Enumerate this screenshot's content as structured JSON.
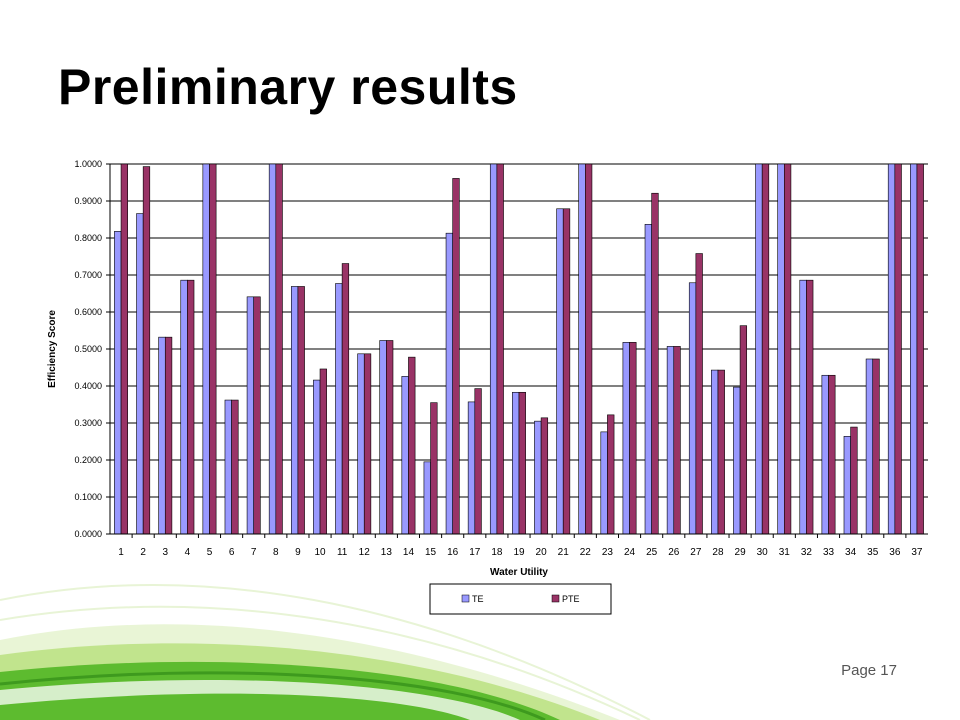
{
  "slide": {
    "title": "Preliminary results",
    "page_label": "Page 17"
  },
  "colors": {
    "te_fill": "#9999FF",
    "pte_fill": "#993366",
    "gridline": "#000000",
    "swoosh_green": "#5DBB2F",
    "swoosh_light": "#B7E07A"
  },
  "chart_data": {
    "type": "bar",
    "title": "",
    "xlabel": "Water Utility",
    "ylabel": "Efficiency Score",
    "ylim": [
      0,
      1
    ],
    "yticks": [
      "0.0000",
      "0.1000",
      "0.2000",
      "0.3000",
      "0.4000",
      "0.5000",
      "0.6000",
      "0.7000",
      "0.8000",
      "0.9000",
      "1.0000"
    ],
    "grid": true,
    "legend_position": "bottom-center",
    "categories": [
      "1",
      "2",
      "3",
      "4",
      "5",
      "6",
      "7",
      "8",
      "9",
      "10",
      "11",
      "12",
      "13",
      "14",
      "15",
      "16",
      "17",
      "18",
      "19",
      "20",
      "21",
      "22",
      "23",
      "24",
      "25",
      "26",
      "27",
      "28",
      "29",
      "30",
      "31",
      "32",
      "33",
      "34",
      "35",
      "36",
      "37"
    ],
    "series": [
      {
        "name": "TE",
        "color": "#9999FF",
        "values": [
          0.818,
          0.866,
          0.532,
          0.686,
          1.0,
          0.362,
          0.641,
          1.0,
          0.669,
          0.416,
          0.677,
          0.487,
          0.523,
          0.426,
          0.195,
          0.813,
          0.357,
          1.0,
          0.383,
          0.305,
          0.879,
          1.0,
          0.276,
          0.518,
          0.837,
          0.507,
          0.679,
          0.443,
          0.397,
          1.0,
          1.0,
          0.686,
          0.429,
          0.264,
          0.473,
          1.0,
          1.0
        ]
      },
      {
        "name": "PTE",
        "color": "#993366",
        "values": [
          1.0,
          0.993,
          0.532,
          0.686,
          1.0,
          0.362,
          0.641,
          1.0,
          0.669,
          0.446,
          0.731,
          0.487,
          0.523,
          0.478,
          0.355,
          0.961,
          0.393,
          1.0,
          0.383,
          0.314,
          0.879,
          1.0,
          0.322,
          0.518,
          0.921,
          0.507,
          0.758,
          0.443,
          0.563,
          1.0,
          1.0,
          0.686,
          0.429,
          0.289,
          0.473,
          1.0,
          1.0
        ]
      }
    ]
  }
}
